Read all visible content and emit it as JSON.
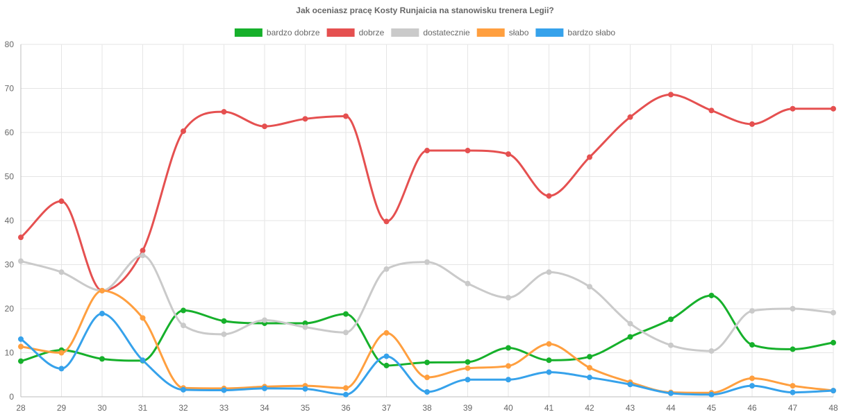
{
  "chart_data": {
    "type": "line",
    "title": "Jak oceniasz pracę Kosty Runjaicia na stanowisku trenera Legii?",
    "xlabel": "",
    "ylabel": "",
    "ylim": [
      0,
      80
    ],
    "y_ticks": [
      0,
      10,
      20,
      30,
      40,
      50,
      60,
      70,
      80
    ],
    "grid": true,
    "legend_position": "top",
    "categories": [
      "28",
      "29",
      "30",
      "31",
      "32",
      "33",
      "34",
      "35",
      "36",
      "37",
      "38",
      "39",
      "40",
      "41",
      "42",
      "43",
      "44",
      "45",
      "46",
      "47",
      "48"
    ],
    "series": [
      {
        "name": "bardzo dobrze",
        "color": "#16b02b",
        "values": [
          8.1,
          10.6,
          8.6,
          8.2,
          19.6,
          17.2,
          16.7,
          16.7,
          18.8,
          7.1,
          7.8,
          7.9,
          11.1,
          8.3,
          9.1,
          13.6,
          17.6,
          23.0,
          11.8,
          10.8,
          12.3
        ]
      },
      {
        "name": "dobrze",
        "color": "#e55050",
        "values": [
          36.2,
          44.4,
          24.1,
          33.2,
          60.3,
          64.7,
          61.4,
          63.1,
          63.7,
          39.8,
          55.9,
          55.9,
          55.1,
          45.6,
          54.4,
          63.5,
          68.6,
          65.0,
          61.9,
          65.4,
          65.4
        ]
      },
      {
        "name": "dostatecznie",
        "color": "#cacaca",
        "values": [
          30.8,
          28.3,
          24.1,
          32.1,
          16.2,
          14.2,
          17.4,
          15.8,
          14.6,
          29.0,
          30.6,
          25.7,
          22.5,
          28.3,
          25.0,
          16.6,
          11.7,
          10.4,
          19.5,
          20.0,
          19.1
        ]
      },
      {
        "name": "słabo",
        "color": "#ff9f3f",
        "values": [
          11.4,
          10.0,
          24.1,
          17.9,
          2.0,
          1.9,
          2.3,
          2.5,
          2.0,
          14.5,
          4.4,
          6.5,
          7.0,
          12.0,
          6.6,
          3.3,
          1.0,
          0.9,
          4.2,
          2.5,
          1.4
        ]
      },
      {
        "name": "bardzo słabo",
        "color": "#36a2eb",
        "values": [
          13.1,
          6.4,
          18.9,
          8.3,
          1.6,
          1.5,
          1.9,
          1.8,
          0.5,
          9.2,
          1.1,
          3.9,
          3.9,
          5.6,
          4.4,
          2.8,
          0.8,
          0.5,
          2.5,
          1.0,
          1.4
        ]
      }
    ]
  }
}
